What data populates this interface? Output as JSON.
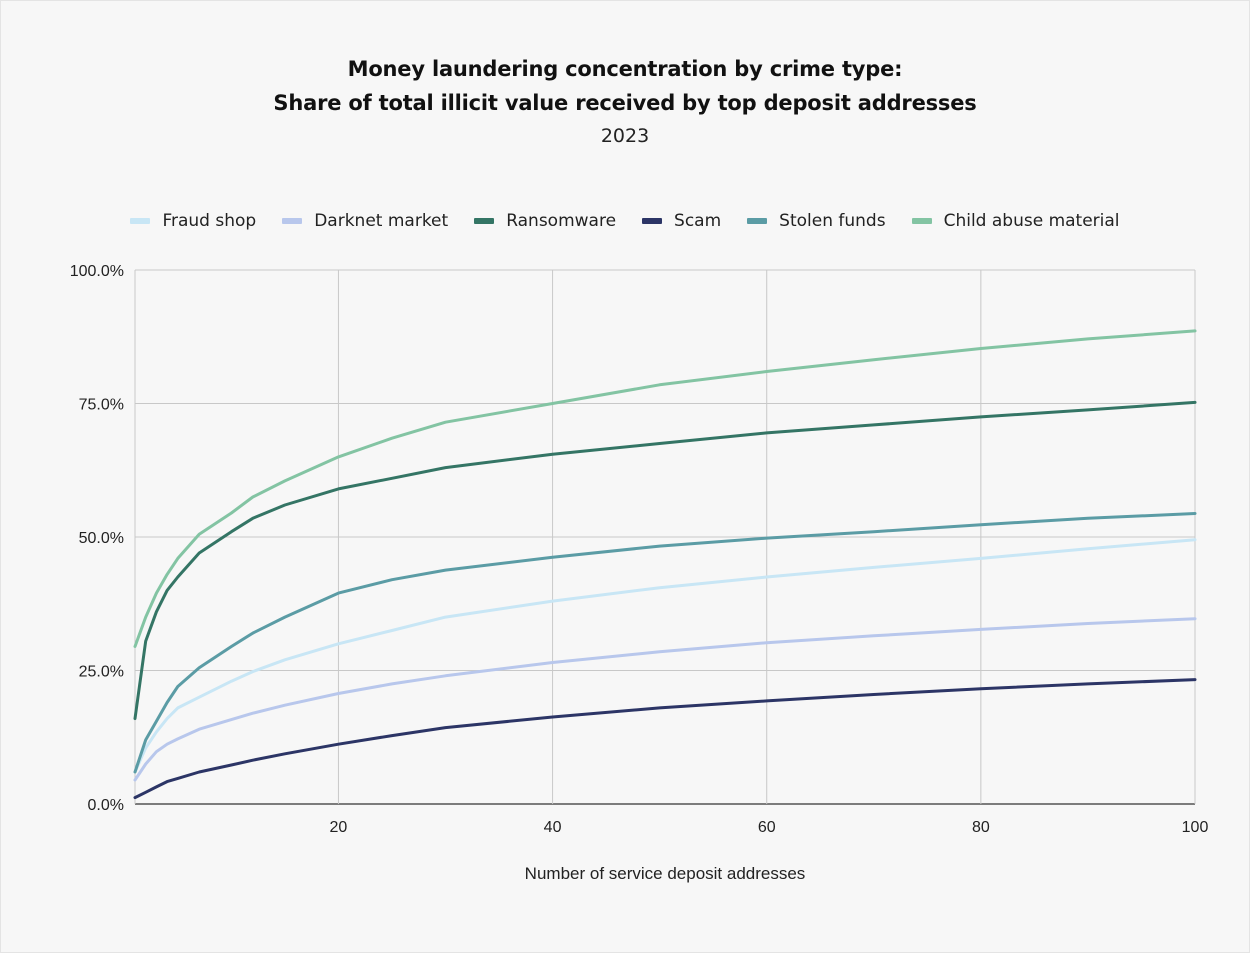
{
  "chart_data": {
    "type": "line",
    "title_lines": [
      "Money laundering concentration by crime type:",
      "Share of total illicit value received by top deposit addresses"
    ],
    "subtitle": "2023",
    "xlabel": "Number of service deposit addresses",
    "ylabel": "",
    "xlim": [
      1,
      100
    ],
    "ylim": [
      0,
      100
    ],
    "x_ticks": [
      20,
      40,
      60,
      80,
      100
    ],
    "y_ticks": [
      0,
      25,
      50,
      75,
      100
    ],
    "y_tick_labels": [
      "0.0%",
      "25.0%",
      "50.0%",
      "75.0%",
      "100.0%"
    ],
    "grid": true,
    "legend_position": "top",
    "x": [
      1,
      2,
      3,
      4,
      5,
      7,
      10,
      12,
      15,
      20,
      25,
      30,
      40,
      50,
      60,
      70,
      80,
      90,
      100
    ],
    "series": [
      {
        "name": "Fraud shop",
        "color": "#c8e6f5",
        "values": [
          6.0,
          10.5,
          13.5,
          16.0,
          18.0,
          20.0,
          23.0,
          24.8,
          27.0,
          30.0,
          32.5,
          35.0,
          38.0,
          40.5,
          42.5,
          44.3,
          46.0,
          47.8,
          49.5
        ]
      },
      {
        "name": "Darknet market",
        "color": "#b8c7ec",
        "values": [
          4.5,
          7.5,
          9.8,
          11.2,
          12.2,
          14.0,
          15.8,
          17.0,
          18.5,
          20.7,
          22.5,
          24.0,
          26.5,
          28.5,
          30.2,
          31.5,
          32.7,
          33.8,
          34.7
        ]
      },
      {
        "name": "Ransomware",
        "color": "#347565",
        "values": [
          16.0,
          30.5,
          36.0,
          40.0,
          42.5,
          47.0,
          51.0,
          53.5,
          56.0,
          59.0,
          61.0,
          63.0,
          65.5,
          67.5,
          69.5,
          71.0,
          72.5,
          73.8,
          75.2
        ]
      },
      {
        "name": "Scam",
        "color": "#2c3566",
        "values": [
          1.2,
          2.2,
          3.2,
          4.2,
          4.8,
          6.0,
          7.3,
          8.2,
          9.4,
          11.2,
          12.8,
          14.3,
          16.3,
          18.0,
          19.3,
          20.5,
          21.6,
          22.5,
          23.3
        ]
      },
      {
        "name": "Stolen funds",
        "color": "#5b9ca5",
        "values": [
          6.0,
          12.0,
          15.5,
          19.0,
          22.0,
          25.5,
          29.5,
          32.0,
          35.0,
          39.5,
          42.0,
          43.8,
          46.2,
          48.3,
          49.8,
          51.0,
          52.3,
          53.5,
          54.4
        ]
      },
      {
        "name": "Child abuse material",
        "color": "#83c4a3",
        "values": [
          29.5,
          35.0,
          39.5,
          43.0,
          46.0,
          50.5,
          54.5,
          57.5,
          60.5,
          65.0,
          68.5,
          71.5,
          75.0,
          78.5,
          81.0,
          83.2,
          85.3,
          87.1,
          88.6
        ]
      }
    ]
  }
}
